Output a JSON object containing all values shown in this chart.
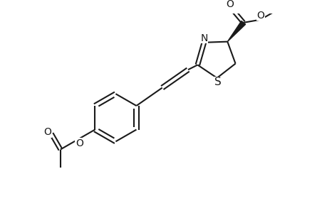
{
  "background_color": "#ffffff",
  "line_color": "#1a1a1a",
  "line_width": 1.5,
  "font_size": 10,
  "figsize": [
    4.6,
    3.0
  ],
  "dpi": 100,
  "xlim": [
    0,
    9.2
  ],
  "ylim": [
    0,
    6.0
  ]
}
